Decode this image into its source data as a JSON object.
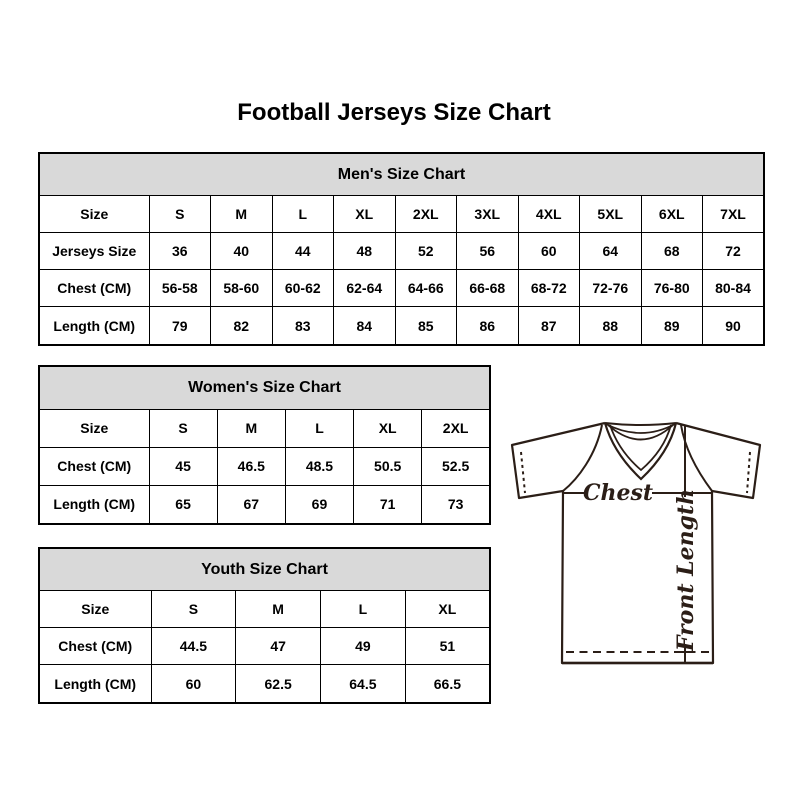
{
  "page": {
    "title": "Football Jerseys Size Chart"
  },
  "chart_data": [
    {
      "type": "table",
      "title": "Men's Size Chart",
      "row_headers": [
        "Size",
        "Jerseys Size",
        "Chest (CM)",
        "Length (CM)"
      ],
      "rows": [
        [
          "S",
          "M",
          "L",
          "XL",
          "2XL",
          "3XL",
          "4XL",
          "5XL",
          "6XL",
          "7XL"
        ],
        [
          "36",
          "40",
          "44",
          "48",
          "52",
          "56",
          "60",
          "64",
          "68",
          "72"
        ],
        [
          "56-58",
          "58-60",
          "60-62",
          "62-64",
          "64-66",
          "66-68",
          "68-72",
          "72-76",
          "76-80",
          "80-84"
        ],
        [
          "79",
          "82",
          "83",
          "84",
          "85",
          "86",
          "87",
          "88",
          "89",
          "90"
        ]
      ]
    },
    {
      "type": "table",
      "title": "Women's Size Chart",
      "row_headers": [
        "Size",
        "Chest (CM)",
        "Length (CM)"
      ],
      "rows": [
        [
          "S",
          "M",
          "L",
          "XL",
          "2XL"
        ],
        [
          "45",
          "46.5",
          "48.5",
          "50.5",
          "52.5"
        ],
        [
          "65",
          "67",
          "69",
          "71",
          "73"
        ]
      ]
    },
    {
      "type": "table",
      "title": "Youth Size Chart",
      "row_headers": [
        "Size",
        "Chest (CM)",
        "Length (CM)"
      ],
      "rows": [
        [
          "S",
          "M",
          "L",
          "XL"
        ],
        [
          "44.5",
          "47",
          "49",
          "51"
        ],
        [
          "60",
          "62.5",
          "64.5",
          "66.5"
        ]
      ]
    }
  ],
  "diagram": {
    "chest_label": "Chest",
    "front_length_label": "Front Length"
  },
  "colors": {
    "table_header_bg": "#d9d9d9",
    "table_border": "#000000",
    "jersey_line": "#2b1e17"
  }
}
